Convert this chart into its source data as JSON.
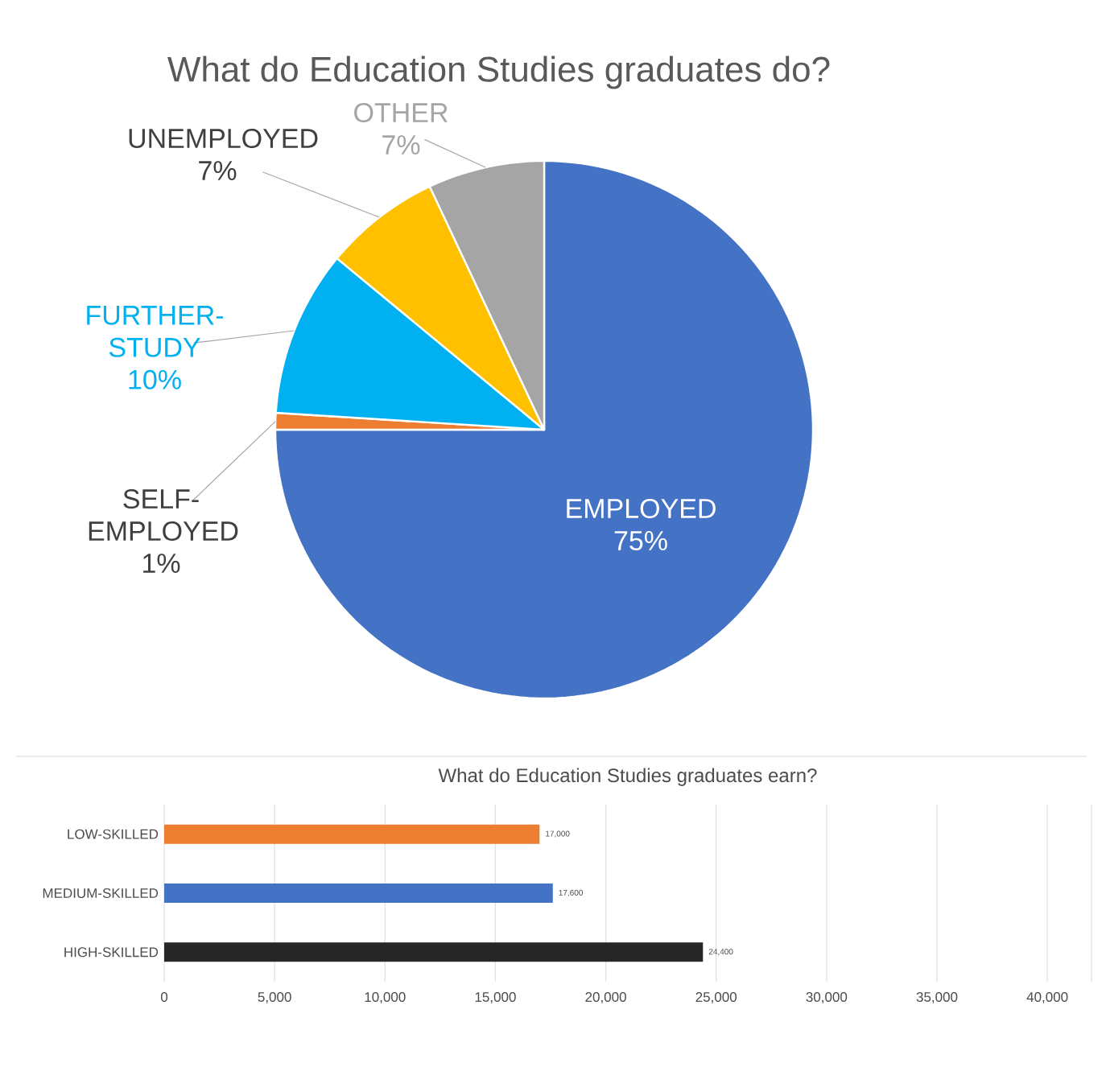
{
  "chart_data": [
    {
      "type": "pie",
      "title": "What do Education Studies graduates do?",
      "categories": [
        "EMPLOYED",
        "SELF-EMPLOYED",
        "FURTHER-STUDY",
        "UNEMPLOYED",
        "OTHER"
      ],
      "values": [
        75,
        1,
        10,
        7,
        7
      ],
      "value_labels": [
        "75%",
        "1%",
        "10%",
        "7%",
        "7%"
      ],
      "colors": [
        "#4472c4",
        "#ed7d31",
        "#00b0f0",
        "#ffc000",
        "#a5a5a5"
      ]
    },
    {
      "type": "bar",
      "orientation": "horizontal",
      "title": "What do Education Studies graduates earn?",
      "categories": [
        "LOW-SKILLED",
        "MEDIUM-SKILLED",
        "HIGH-SKILLED"
      ],
      "values": [
        17000,
        17600,
        24400
      ],
      "value_labels": [
        "17,000",
        "17,600",
        "24,400"
      ],
      "colors": [
        "#ed7d31",
        "#4472c4",
        "#262626"
      ],
      "xlim": [
        0,
        42000
      ],
      "xticks": [
        0,
        {
          "value": 5000,
          "label": "5,000"
        },
        {
          "value": 10000,
          "label": "10,000"
        },
        {
          "value": 15000,
          "label": "15,000"
        },
        {
          "value": 20000,
          "label": "20,000"
        },
        {
          "value": 25000,
          "label": "25,000"
        },
        {
          "value": 30000,
          "label": "30,000"
        },
        {
          "value": 35000,
          "label": "35,000"
        },
        {
          "value": 40000,
          "label": "40,000"
        }
      ],
      "grid": "x"
    }
  ]
}
